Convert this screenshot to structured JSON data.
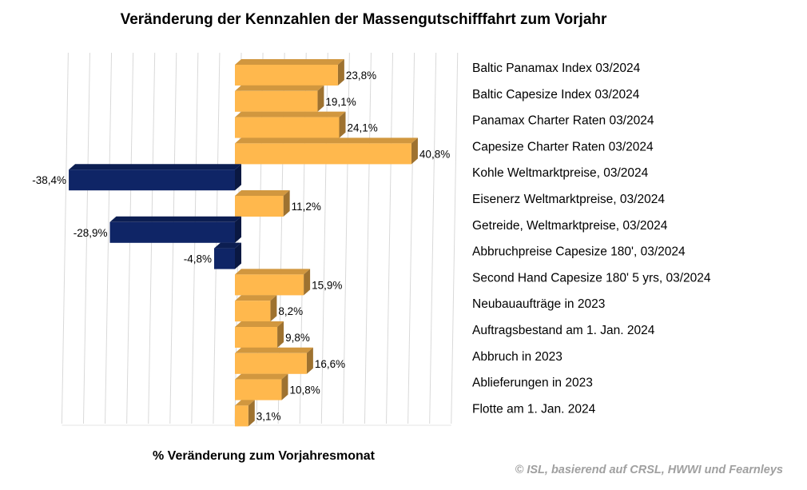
{
  "chart_data": {
    "type": "bar",
    "orientation": "horizontal",
    "title": "Veränderung der Kennzahlen der Massengutschifffahrt zum Vorjahr",
    "xlabel": "% Veränderung zum Vorjahresmonat",
    "source": "© ISL, basierend auf CRSL, HWWI und Fearnleys",
    "categories": [
      "Baltic Panamax Index 03/2024",
      "Baltic Capesize Index 03/2024",
      "Panamax Charter Raten 03/2024",
      "Capesize Charter Raten 03/2024",
      "Kohle Weltmarktpreise, 03/2024",
      "Eisenerz Weltmarktpreise, 03/2024",
      "Getreide, Weltmarktpreise, 03/2024",
      "Abbruchpreise Capesize 180', 03/2024",
      "Second Hand Capesize 180' 5 yrs, 03/2024",
      "Neubauaufträge in 2023",
      "Auftragsbestand am 1. Jan. 2024",
      "Abbruch in 2023",
      "Ablieferungen in 2023",
      "Flotte am 1. Jan.  2024"
    ],
    "values": [
      23.8,
      19.1,
      24.1,
      40.8,
      -38.4,
      11.2,
      -28.9,
      -4.8,
      15.9,
      8.2,
      9.8,
      16.6,
      10.8,
      3.1
    ],
    "labels": [
      "23,8%",
      "19,1%",
      "24,1%",
      "40,8%",
      "-38,4%",
      "11,2%",
      "-28,9%",
      "-4,8%",
      "15,9%",
      "8,2%",
      "9,8%",
      "16,6%",
      "10,8%",
      "3,1%"
    ],
    "xlim": [
      -40,
      50
    ],
    "grid": true,
    "colors": {
      "positive": "#FFB84D",
      "negative": "#0F2566"
    }
  }
}
